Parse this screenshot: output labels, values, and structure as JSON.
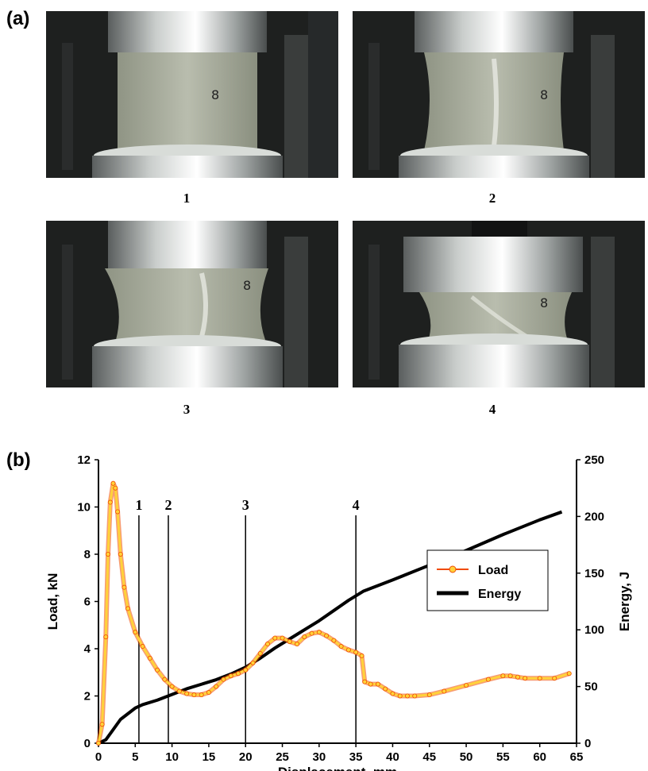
{
  "figure": {
    "panel_a_label": "(a)",
    "panel_b_label": "(b)",
    "photos": [
      {
        "caption": "1",
        "marker": "8",
        "stage": 1
      },
      {
        "caption": "2",
        "marker": "8",
        "stage": 2
      },
      {
        "caption": "3",
        "marker": "8",
        "stage": 3
      },
      {
        "caption": "4",
        "marker": "8",
        "stage": 4
      }
    ]
  },
  "chart_data": {
    "type": "line",
    "title": "",
    "xlabel": "Displacement, mm",
    "ylabel_left": "Load, kN",
    "ylabel_right": "Energy, J",
    "xlim": [
      0,
      65
    ],
    "ylim_left": [
      0,
      12
    ],
    "ylim_right": [
      0,
      250
    ],
    "x_ticks": [
      0,
      5,
      10,
      15,
      20,
      25,
      30,
      35,
      40,
      45,
      50,
      55,
      60,
      65
    ],
    "y_left_ticks": [
      0,
      2,
      4,
      6,
      8,
      10,
      12
    ],
    "y_right_ticks": [
      0,
      50,
      100,
      150,
      200,
      250
    ],
    "grid": false,
    "legend_position": "right",
    "series": [
      {
        "name": "Load",
        "axis": "left",
        "color": "#ffd23a",
        "edge_color": "#f04a00",
        "marker": "circle",
        "x": [
          0,
          0.5,
          1,
          1.3,
          1.6,
          2,
          2.3,
          2.6,
          3,
          3.5,
          4,
          5,
          6,
          7,
          8,
          9,
          10,
          11,
          12,
          13,
          14,
          15,
          16,
          17,
          18,
          19,
          20,
          21,
          22,
          23,
          24,
          25,
          26,
          27,
          28,
          29,
          30,
          31,
          32,
          33,
          34,
          35,
          35.8,
          36.2,
          37,
          38,
          39,
          40,
          41,
          42,
          43,
          45,
          47,
          50,
          53,
          55,
          56,
          57,
          58,
          60,
          62,
          64
        ],
        "values": [
          0,
          0.8,
          4.5,
          8.0,
          10.2,
          11.0,
          10.8,
          9.8,
          8.0,
          6.6,
          5.7,
          4.7,
          4.1,
          3.6,
          3.1,
          2.7,
          2.4,
          2.2,
          2.1,
          2.05,
          2.05,
          2.15,
          2.4,
          2.7,
          2.85,
          2.95,
          3.1,
          3.4,
          3.8,
          4.2,
          4.45,
          4.45,
          4.3,
          4.2,
          4.5,
          4.65,
          4.7,
          4.55,
          4.35,
          4.1,
          3.95,
          3.85,
          3.7,
          2.6,
          2.5,
          2.5,
          2.3,
          2.1,
          2.0,
          2.0,
          2.0,
          2.05,
          2.2,
          2.45,
          2.7,
          2.85,
          2.85,
          2.8,
          2.75,
          2.75,
          2.75,
          2.95
        ]
      },
      {
        "name": "Energy",
        "axis": "right",
        "color": "#000000",
        "x": [
          0,
          1,
          2,
          3,
          4,
          5,
          6,
          8,
          10,
          12,
          14,
          16,
          18,
          20,
          22,
          24,
          26,
          28,
          30,
          32,
          34,
          36,
          38,
          40,
          45,
          50,
          55,
          60,
          63
        ],
        "values": [
          0,
          3,
          12,
          21,
          26,
          31,
          34,
          38,
          43,
          48,
          52,
          56,
          61,
          67,
          75,
          84,
          92,
          100,
          108,
          117,
          126,
          134,
          139,
          144,
          157,
          170,
          184,
          197,
          204
        ]
      }
    ],
    "annotations": [
      {
        "label": "1",
        "x": 5.5
      },
      {
        "label": "2",
        "x": 9.5
      },
      {
        "label": "3",
        "x": 20
      },
      {
        "label": "4",
        "x": 35
      }
    ]
  }
}
